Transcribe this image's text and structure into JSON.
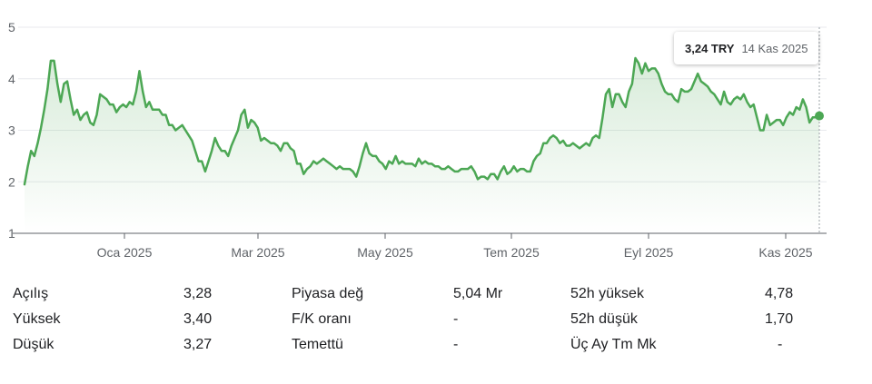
{
  "chart_data": {
    "type": "area",
    "y_ticks": [
      "1",
      "2",
      "3",
      "4",
      "5"
    ],
    "ylim": [
      1,
      5
    ],
    "x_tick_labels": [
      "Oca 2025",
      "Mar 2025",
      "May 2025",
      "Tem 2025",
      "Eyl 2025",
      "Kas 2025"
    ],
    "series": [
      {
        "values": [
          1.95,
          2.3,
          2.6,
          2.5,
          2.75,
          3.05,
          3.4,
          3.8,
          4.35,
          4.35,
          3.9,
          3.55,
          3.9,
          3.95,
          3.6,
          3.3,
          3.4,
          3.2,
          3.3,
          3.35,
          3.15,
          3.1,
          3.3,
          3.7,
          3.65,
          3.6,
          3.5,
          3.5,
          3.35,
          3.45,
          3.5,
          3.45,
          3.55,
          3.5,
          3.75,
          4.15,
          3.75,
          3.45,
          3.55,
          3.4,
          3.4,
          3.4,
          3.3,
          3.3,
          3.1,
          3.1,
          3.0,
          3.05,
          3.1,
          3.0,
          2.9,
          2.8,
          2.6,
          2.4,
          2.4,
          2.2,
          2.4,
          2.6,
          2.85,
          2.7,
          2.6,
          2.6,
          2.5,
          2.7,
          2.85,
          3.0,
          3.3,
          3.4,
          3.05,
          3.2,
          3.15,
          3.05,
          2.8,
          2.85,
          2.8,
          2.75,
          2.75,
          2.7,
          2.6,
          2.75,
          2.75,
          2.65,
          2.6,
          2.35,
          2.35,
          2.15,
          2.25,
          2.3,
          2.4,
          2.35,
          2.4,
          2.45,
          2.4,
          2.35,
          2.3,
          2.25,
          2.3,
          2.25,
          2.25,
          2.25,
          2.2,
          2.1,
          2.3,
          2.55,
          2.75,
          2.55,
          2.5,
          2.5,
          2.4,
          2.35,
          2.25,
          2.4,
          2.35,
          2.5,
          2.35,
          2.4,
          2.35,
          2.35,
          2.35,
          2.3,
          2.45,
          2.35,
          2.4,
          2.35,
          2.35,
          2.3,
          2.3,
          2.25,
          2.25,
          2.3,
          2.25,
          2.2,
          2.2,
          2.25,
          2.25,
          2.25,
          2.3,
          2.2,
          2.05,
          2.1,
          2.1,
          2.05,
          2.15,
          2.15,
          2.05,
          2.2,
          2.3,
          2.15,
          2.2,
          2.3,
          2.2,
          2.25,
          2.25,
          2.2,
          2.2,
          2.4,
          2.5,
          2.55,
          2.75,
          2.75,
          2.85,
          2.9,
          2.85,
          2.75,
          2.8,
          2.7,
          2.7,
          2.75,
          2.7,
          2.65,
          2.7,
          2.75,
          2.7,
          2.85,
          2.9,
          2.85,
          3.25,
          3.7,
          3.8,
          3.45,
          3.7,
          3.7,
          3.55,
          3.45,
          3.75,
          3.9,
          4.4,
          4.3,
          4.1,
          4.3,
          4.15,
          4.2,
          4.2,
          4.1,
          3.9,
          3.75,
          3.7,
          3.7,
          3.6,
          3.55,
          3.8,
          3.75,
          3.75,
          3.8,
          3.95,
          4.1,
          3.95,
          3.9,
          3.85,
          3.75,
          3.7,
          3.6,
          3.5,
          3.75,
          3.55,
          3.5,
          3.6,
          3.65,
          3.6,
          3.7,
          3.55,
          3.45,
          3.5,
          3.25,
          3.0,
          3.0,
          3.3,
          3.1,
          3.15,
          3.2,
          3.2,
          3.1,
          3.25,
          3.35,
          3.3,
          3.45,
          3.4,
          3.6,
          3.45,
          3.15,
          3.25,
          3.25,
          3.28
        ]
      }
    ],
    "grid": "horizontal",
    "tooltip": {
      "price": "3,24 TRY",
      "date": "14 Kas 2025"
    },
    "line_color": "#4CA754"
  },
  "stats": {
    "col1": [
      {
        "label": "Açılış",
        "value": "3,28"
      },
      {
        "label": "Yüksek",
        "value": "3,40"
      },
      {
        "label": "Düşük",
        "value": "3,27"
      }
    ],
    "col2": [
      {
        "label": "Piyasa değ",
        "value": "5,04 Mr"
      },
      {
        "label": "F/K oranı",
        "value": "-"
      },
      {
        "label": "Temettü",
        "value": "-"
      }
    ],
    "col3": [
      {
        "label": "52h yüksek",
        "value": "4,78"
      },
      {
        "label": "52h düşük",
        "value": "1,70"
      },
      {
        "label": "Üç Ay Tm Mk",
        "value": "-"
      }
    ]
  }
}
